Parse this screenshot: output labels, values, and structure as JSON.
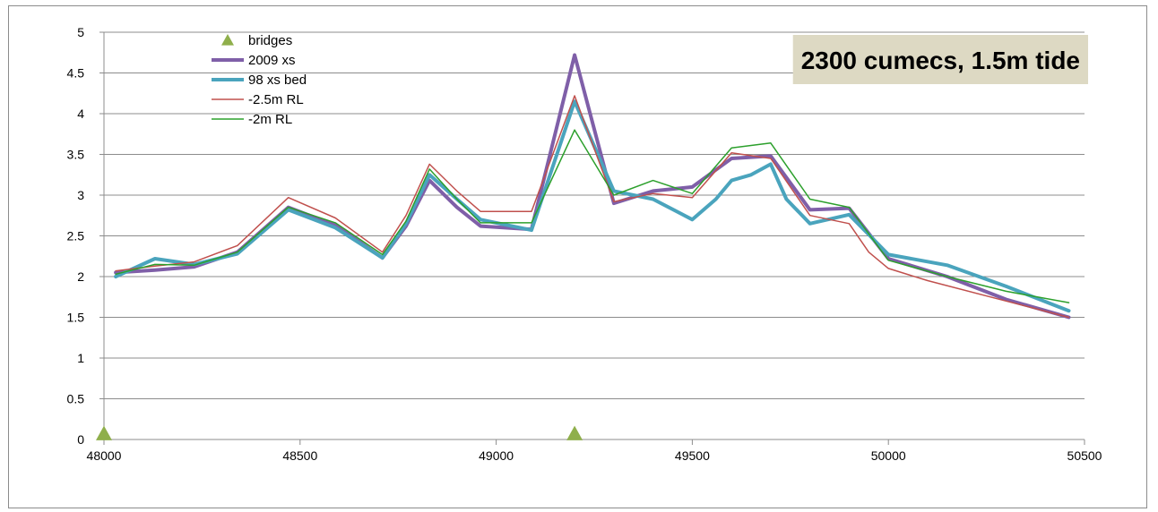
{
  "chart_data": {
    "type": "line",
    "title": "2300 cumecs, 1.5m tide",
    "title_box_color": "#ddd9c3",
    "xlim": [
      48000,
      50500
    ],
    "ylim": [
      0,
      5
    ],
    "x_ticks": [
      48000,
      48500,
      49000,
      49500,
      50000,
      50500
    ],
    "y_ticks": [
      0,
      0.5,
      1,
      1.5,
      2,
      2.5,
      3,
      3.5,
      4,
      4.5,
      5
    ],
    "x_tick_labels": [
      "48000",
      "48500",
      "49000",
      "49500",
      "50000",
      "50500"
    ],
    "y_tick_labels": [
      "0",
      "0.5",
      "1",
      "1.5",
      "2",
      "2.5",
      "3",
      "3.5",
      "4",
      "4.5",
      "5"
    ],
    "grid": "horizontal",
    "legend_position": "top-left",
    "series": [
      {
        "name": "bridges",
        "kind": "marker",
        "marker": "triangle",
        "color": "#8faf4b",
        "points": [
          [
            48000,
            0.07
          ],
          [
            49200,
            0.07
          ]
        ]
      },
      {
        "name": "2009 xs",
        "kind": "line",
        "color": "#7f5fa8",
        "width": 4,
        "points": [
          [
            48030,
            2.05
          ],
          [
            48130,
            2.08
          ],
          [
            48230,
            2.12
          ],
          [
            48340,
            2.3
          ],
          [
            48470,
            2.85
          ],
          [
            48590,
            2.63
          ],
          [
            48710,
            2.23
          ],
          [
            48770,
            2.62
          ],
          [
            48830,
            3.18
          ],
          [
            48900,
            2.85
          ],
          [
            48960,
            2.62
          ],
          [
            49090,
            2.58
          ],
          [
            49200,
            4.72
          ],
          [
            49300,
            2.9
          ],
          [
            49400,
            3.05
          ],
          [
            49500,
            3.1
          ],
          [
            49600,
            3.45
          ],
          [
            49700,
            3.48
          ],
          [
            49800,
            2.82
          ],
          [
            49900,
            2.84
          ],
          [
            50000,
            2.22
          ],
          [
            50150,
            2.0
          ],
          [
            50300,
            1.72
          ],
          [
            50460,
            1.5
          ]
        ]
      },
      {
        "name": "98 xs bed",
        "kind": "line",
        "color": "#4aa4bd",
        "width": 4,
        "points": [
          [
            48030,
            2.0
          ],
          [
            48130,
            2.22
          ],
          [
            48230,
            2.15
          ],
          [
            48340,
            2.28
          ],
          [
            48470,
            2.82
          ],
          [
            48590,
            2.6
          ],
          [
            48710,
            2.23
          ],
          [
            48770,
            2.65
          ],
          [
            48830,
            3.25
          ],
          [
            48900,
            2.95
          ],
          [
            48960,
            2.7
          ],
          [
            49090,
            2.57
          ],
          [
            49200,
            4.15
          ],
          [
            49300,
            3.05
          ],
          [
            49400,
            2.95
          ],
          [
            49500,
            2.7
          ],
          [
            49560,
            2.95
          ],
          [
            49600,
            3.18
          ],
          [
            49650,
            3.25
          ],
          [
            49700,
            3.38
          ],
          [
            49740,
            2.95
          ],
          [
            49800,
            2.65
          ],
          [
            49900,
            2.76
          ],
          [
            50000,
            2.27
          ],
          [
            50150,
            2.14
          ],
          [
            50300,
            1.88
          ],
          [
            50460,
            1.58
          ]
        ]
      },
      {
        "name": "-2.5m RL",
        "kind": "line",
        "color": "#c0504d",
        "width": 1.5,
        "points": [
          [
            48030,
            2.07
          ],
          [
            48130,
            2.13
          ],
          [
            48230,
            2.18
          ],
          [
            48340,
            2.38
          ],
          [
            48470,
            2.97
          ],
          [
            48590,
            2.72
          ],
          [
            48710,
            2.3
          ],
          [
            48770,
            2.75
          ],
          [
            48830,
            3.38
          ],
          [
            48900,
            3.05
          ],
          [
            48960,
            2.8
          ],
          [
            49090,
            2.8
          ],
          [
            49200,
            4.22
          ],
          [
            49300,
            2.92
          ],
          [
            49400,
            3.02
          ],
          [
            49500,
            2.97
          ],
          [
            49600,
            3.52
          ],
          [
            49700,
            3.45
          ],
          [
            49800,
            2.75
          ],
          [
            49900,
            2.65
          ],
          [
            49950,
            2.3
          ],
          [
            50000,
            2.1
          ],
          [
            50100,
            1.95
          ],
          [
            50300,
            1.7
          ],
          [
            50460,
            1.5
          ]
        ]
      },
      {
        "name": "-2m RL",
        "kind": "line",
        "color": "#2ca02c",
        "width": 1.5,
        "points": [
          [
            48030,
            2.03
          ],
          [
            48130,
            2.15
          ],
          [
            48230,
            2.14
          ],
          [
            48340,
            2.3
          ],
          [
            48470,
            2.85
          ],
          [
            48590,
            2.66
          ],
          [
            48710,
            2.27
          ],
          [
            48770,
            2.68
          ],
          [
            48830,
            3.32
          ],
          [
            48900,
            2.95
          ],
          [
            48960,
            2.66
          ],
          [
            49090,
            2.66
          ],
          [
            49200,
            3.8
          ],
          [
            49300,
            3.0
          ],
          [
            49400,
            3.18
          ],
          [
            49500,
            3.02
          ],
          [
            49600,
            3.58
          ],
          [
            49700,
            3.64
          ],
          [
            49800,
            2.95
          ],
          [
            49900,
            2.85
          ],
          [
            50000,
            2.2
          ],
          [
            50150,
            2.0
          ],
          [
            50300,
            1.82
          ],
          [
            50460,
            1.68
          ]
        ]
      }
    ]
  }
}
